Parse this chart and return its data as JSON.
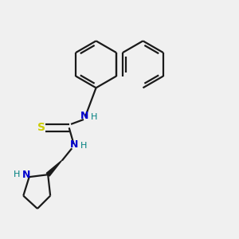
{
  "background_color": "#f0f0f0",
  "bond_color": "#1a1a1a",
  "N_color": "#0000cd",
  "S_color": "#cccc00",
  "H_color": "#008080",
  "line_width": 1.6,
  "figsize": [
    3.0,
    3.0
  ],
  "dpi": 100,
  "xlim": [
    0,
    1
  ],
  "ylim": [
    0,
    1
  ]
}
